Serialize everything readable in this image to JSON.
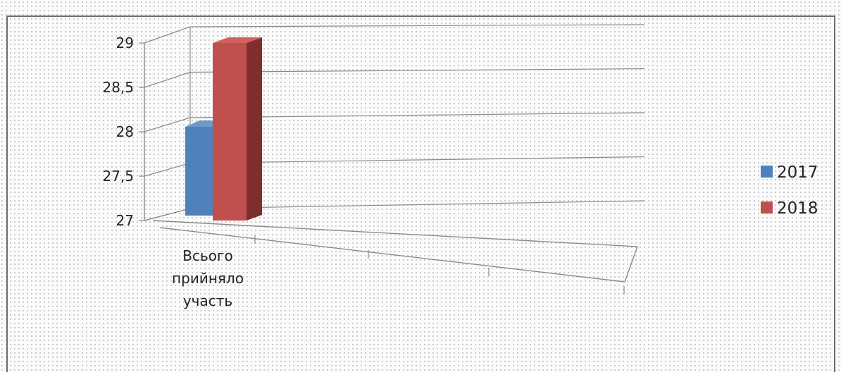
{
  "colors": {
    "series_2017": "#4f81bd",
    "series_2017_top": "#6f98cc",
    "series_2017_side": "#3a679d",
    "series_2018": "#c0504d",
    "series_2018_top": "#d0615d",
    "series_2018_side": "#7e2e2c",
    "grid": "#8a8a8a"
  },
  "chart_data": {
    "type": "bar",
    "categories": [
      "Всього прийняло участь"
    ],
    "category_lines": [
      "Всього",
      "прийняло",
      "участь"
    ],
    "series": [
      {
        "name": "2017",
        "values": [
          28
        ]
      },
      {
        "name": "2018",
        "values": [
          29
        ]
      }
    ],
    "ylim": [
      27,
      29
    ],
    "yticks": [
      27,
      27.5,
      28,
      28.5,
      29
    ],
    "ytick_labels": [
      "27",
      "27,5",
      "28",
      "28,5",
      "29"
    ],
    "grid": true,
    "legend": "right",
    "style": "3d-clustered-column"
  }
}
